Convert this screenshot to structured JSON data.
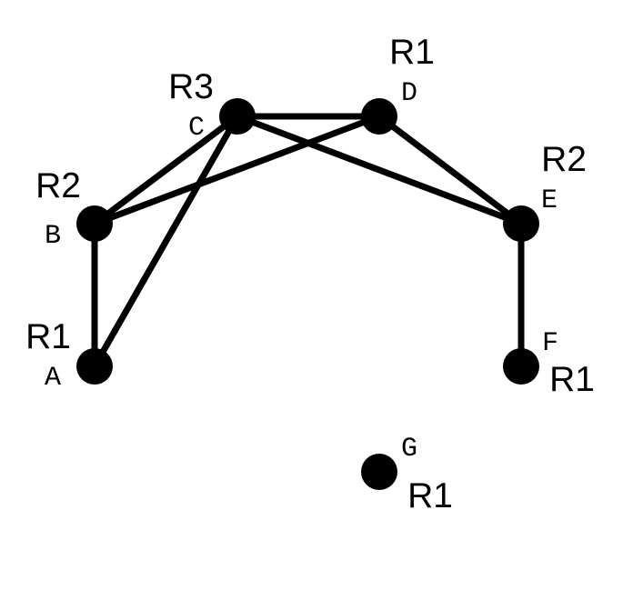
{
  "diagram": {
    "nodes": [
      {
        "id": "A",
        "label": "A",
        "region": "R1"
      },
      {
        "id": "B",
        "label": "B",
        "region": "R2"
      },
      {
        "id": "C",
        "label": "C",
        "region": "R3"
      },
      {
        "id": "D",
        "label": "D",
        "region": "R1"
      },
      {
        "id": "E",
        "label": "E",
        "region": "R2"
      },
      {
        "id": "F",
        "label": "F",
        "region": "R1"
      },
      {
        "id": "G",
        "label": "G",
        "region": "R1"
      }
    ],
    "edges": [
      {
        "from": "A",
        "to": "B"
      },
      {
        "from": "A",
        "to": "C"
      },
      {
        "from": "B",
        "to": "C"
      },
      {
        "from": "B",
        "to": "D"
      },
      {
        "from": "C",
        "to": "D"
      },
      {
        "from": "C",
        "to": "E"
      },
      {
        "from": "D",
        "to": "E"
      },
      {
        "from": "E",
        "to": "F"
      }
    ],
    "colors": {
      "node": "#000000",
      "edge": "#000000",
      "background": "#ffffff"
    }
  }
}
